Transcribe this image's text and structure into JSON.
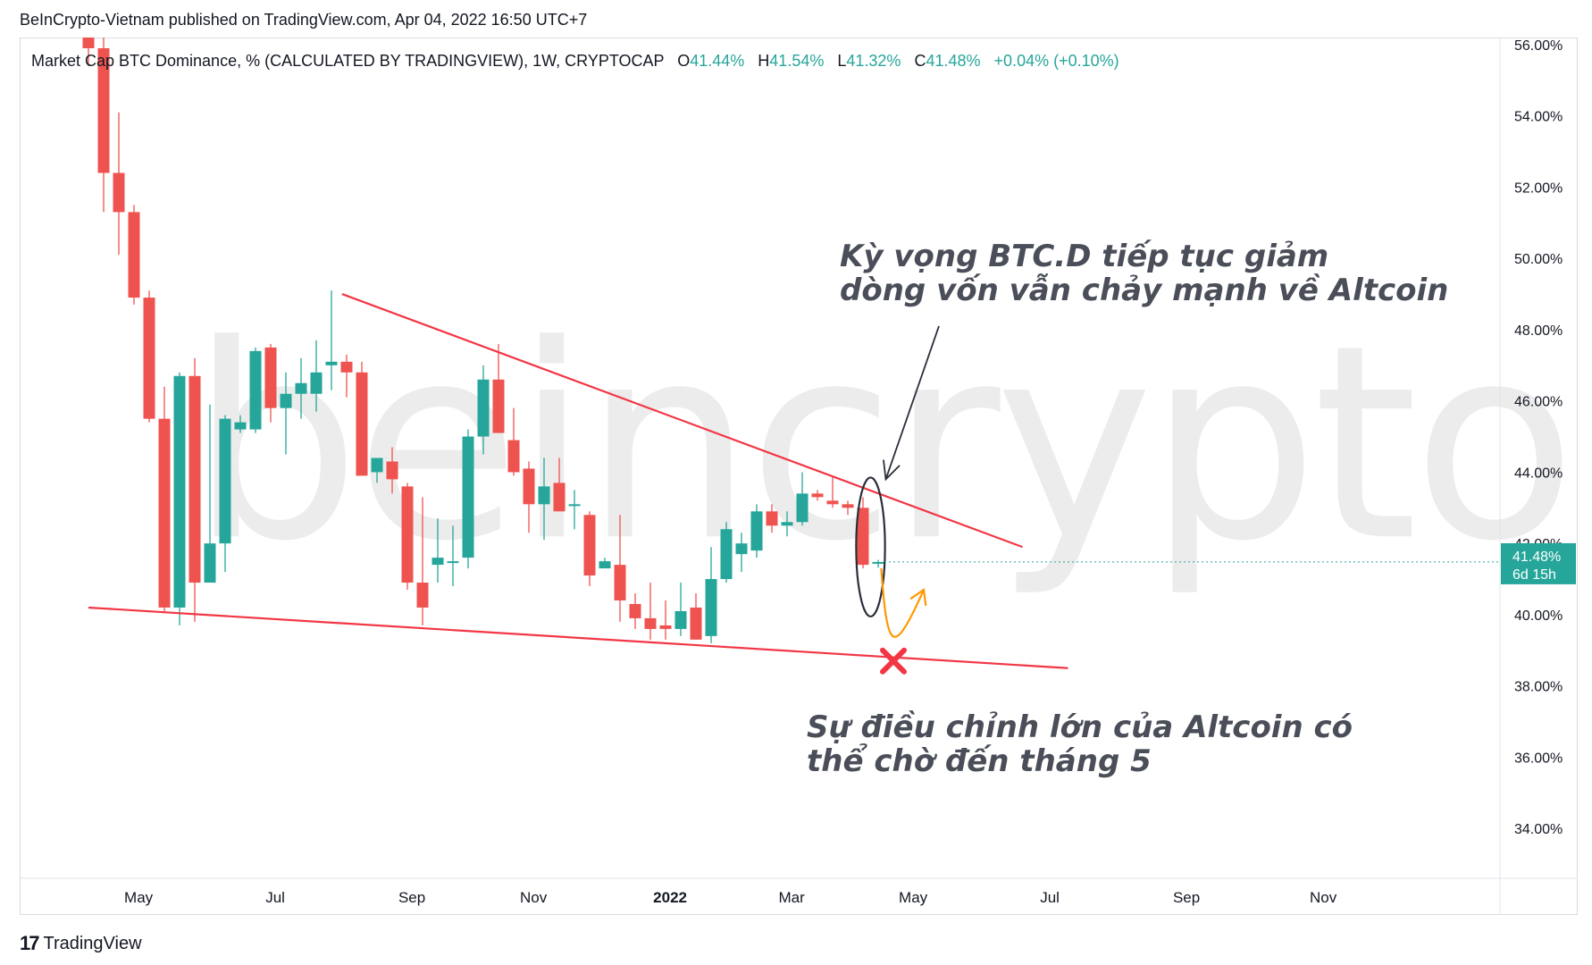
{
  "header": {
    "publish_line": "BeInCrypto-Vietnam published on TradingView.com, Apr 04, 2022 16:50 UTC+7"
  },
  "legend": {
    "symbol": "Market Cap BTC Dominance, % (CALCULATED BY TRADINGVIEW), 1W, CRYPTOCAP",
    "o_label": "O",
    "o_value": "41.44%",
    "h_label": "H",
    "h_value": "41.54%",
    "l_label": "L",
    "l_value": "41.32%",
    "c_label": "C",
    "c_value": "41.48%",
    "change": "+0.04% (+0.10%)"
  },
  "price_tag": {
    "value": "41.48%",
    "countdown": "6d 15h"
  },
  "watermark": "beincrypto",
  "annotations": {
    "top": [
      "Kỳ vọng BTC.D tiếp tục giảm",
      "dòng vốn vẫn chảy mạnh về Altcoin"
    ],
    "bottom": [
      "Sự điều chỉnh lớn của Altcoin có",
      "thể chờ đến tháng 5"
    ]
  },
  "footer": {
    "logo": "17",
    "brand": "TradingView"
  },
  "colors": {
    "up": "#26a69a",
    "down": "#ef5350",
    "trendline": "#f23645",
    "arrow": "#ff9800",
    "pencil": "#2a2e39"
  },
  "chart_data": {
    "type": "candlestick",
    "interval": "1W",
    "y_unit": "%",
    "ylim": [
      32.6,
      56.2
    ],
    "y_ticks": [
      "56.00%",
      "54.00%",
      "52.00%",
      "50.00%",
      "48.00%",
      "46.00%",
      "44.00%",
      "42.00%",
      "40.00%",
      "38.00%",
      "36.00%",
      "34.00%"
    ],
    "x_ticks": [
      {
        "label": "May",
        "week": 3.3,
        "bold": false
      },
      {
        "label": "Jul",
        "week": 12.3,
        "bold": false
      },
      {
        "label": "Sep",
        "week": 21.3,
        "bold": false
      },
      {
        "label": "Nov",
        "week": 29.3,
        "bold": false
      },
      {
        "label": "2022",
        "week": 38.3,
        "bold": true
      },
      {
        "label": "Mar",
        "week": 46.3,
        "bold": false
      },
      {
        "label": "May",
        "week": 54.3,
        "bold": false
      },
      {
        "label": "Jul",
        "week": 63.3,
        "bold": false
      },
      {
        "label": "Sep",
        "week": 72.3,
        "bold": false
      },
      {
        "label": "Nov",
        "week": 81.3,
        "bold": false
      }
    ],
    "candles": [
      [
        56.5,
        56.8,
        55.4,
        55.9
      ],
      [
        55.9,
        56.2,
        51.3,
        52.4
      ],
      [
        52.4,
        54.1,
        50.1,
        51.3
      ],
      [
        51.3,
        51.5,
        48.7,
        48.9
      ],
      [
        48.9,
        49.1,
        45.4,
        45.5
      ],
      [
        45.5,
        46.4,
        40.1,
        40.2
      ],
      [
        40.2,
        46.8,
        39.7,
        46.7
      ],
      [
        46.7,
        47.2,
        39.8,
        40.9
      ],
      [
        40.9,
        45.9,
        41.1,
        42.0
      ],
      [
        42.0,
        45.6,
        41.2,
        45.5
      ],
      [
        45.2,
        45.6,
        45.1,
        45.4
      ],
      [
        45.2,
        47.5,
        45.1,
        47.4
      ],
      [
        47.5,
        47.6,
        45.4,
        45.8
      ],
      [
        45.8,
        46.8,
        44.5,
        46.2
      ],
      [
        46.2,
        47.2,
        45.5,
        46.5
      ],
      [
        46.2,
        47.7,
        45.7,
        46.8
      ],
      [
        47.0,
        49.1,
        46.3,
        47.1
      ],
      [
        47.1,
        47.3,
        46.1,
        46.8
      ],
      [
        46.8,
        47.1,
        43.9,
        43.9
      ],
      [
        44.0,
        44.3,
        43.7,
        44.4
      ],
      [
        44.3,
        44.7,
        43.4,
        43.8
      ],
      [
        43.6,
        43.7,
        40.7,
        40.9
      ],
      [
        40.9,
        43.3,
        39.7,
        40.2
      ],
      [
        41.4,
        42.7,
        40.9,
        41.6
      ],
      [
        41.5,
        42.5,
        40.8,
        41.5
      ],
      [
        41.6,
        45.2,
        41.3,
        45.0
      ],
      [
        45.0,
        47.0,
        44.5,
        46.6
      ],
      [
        46.6,
        47.6,
        45.1,
        45.1
      ],
      [
        44.9,
        45.8,
        43.9,
        44.0
      ],
      [
        44.1,
        44.3,
        42.3,
        43.1
      ],
      [
        43.1,
        44.4,
        42.1,
        43.6
      ],
      [
        43.7,
        44.4,
        42.9,
        42.9
      ],
      [
        43.1,
        43.5,
        42.4,
        43.1
      ],
      [
        42.8,
        42.9,
        40.8,
        41.1
      ],
      [
        41.3,
        41.6,
        41.3,
        41.5
      ],
      [
        41.4,
        42.8,
        39.8,
        40.4
      ],
      [
        40.3,
        40.6,
        39.6,
        39.9
      ],
      [
        39.9,
        40.9,
        39.3,
        39.6
      ],
      [
        39.7,
        40.4,
        39.3,
        39.6
      ],
      [
        39.6,
        40.9,
        39.4,
        40.1
      ],
      [
        40.2,
        40.6,
        39.3,
        39.3
      ],
      [
        39.4,
        41.9,
        39.2,
        41.0
      ],
      [
        41.0,
        42.6,
        40.9,
        42.4
      ],
      [
        41.7,
        42.3,
        41.2,
        42.0
      ],
      [
        41.8,
        43.1,
        41.6,
        42.9
      ],
      [
        42.9,
        43.1,
        42.3,
        42.5
      ],
      [
        42.5,
        42.9,
        42.2,
        42.6
      ],
      [
        42.6,
        44.0,
        42.5,
        43.4
      ],
      [
        43.4,
        43.5,
        43.2,
        43.3
      ],
      [
        43.2,
        43.9,
        43.0,
        43.1
      ],
      [
        43.1,
        43.2,
        42.8,
        43.0
      ],
      [
        43.0,
        43.3,
        41.3,
        41.4
      ],
      [
        41.44,
        41.54,
        41.32,
        41.48
      ]
    ],
    "drawings": {
      "upper_trendline": [
        [
          16.7,
          49.0
        ],
        [
          61.5,
          41.9
        ]
      ],
      "lower_trendline": [
        [
          0,
          40.2
        ],
        [
          64.5,
          38.5
        ]
      ],
      "ellipse": {
        "week": 51.5,
        "center": 41.9,
        "half_height": 1.95,
        "half_width_weeks": 0.95
      },
      "pencil_arrow": [
        [
          56.0,
          48.1
        ],
        [
          52.5,
          43.8
        ]
      ],
      "orange_curve": [
        [
          52.2,
          41.3
        ],
        [
          52.6,
          38.9
        ],
        [
          53.0,
          38.8
        ],
        [
          55.0,
          40.7
        ]
      ],
      "x_marker": {
        "week": 53.0,
        "value": 38.7
      }
    }
  }
}
